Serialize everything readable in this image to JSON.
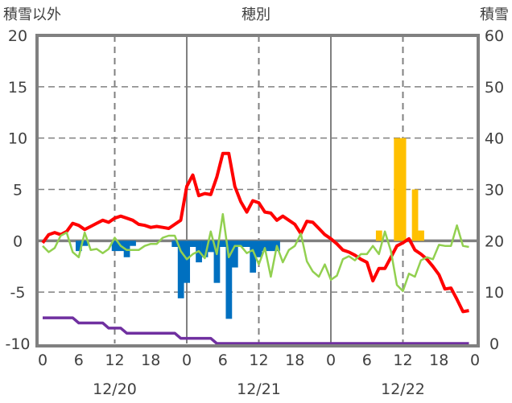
{
  "chart_data": {
    "type": "bar+line",
    "title": "穂別",
    "left_axis_label": "積雪以外",
    "right_axis_label": "積雪",
    "ylim_left": [
      -10,
      20
    ],
    "ylim_right": [
      0,
      60
    ],
    "left_ticks": [
      "20",
      "15",
      "10",
      "5",
      "0",
      "-5",
      "-10"
    ],
    "right_ticks": [
      "60",
      "50",
      "40",
      "30",
      "20",
      "10",
      "0"
    ],
    "x_hours_range": [
      0,
      72
    ],
    "x_tick_labels": [
      "0",
      "6",
      "12",
      "18",
      "0",
      "6",
      "12",
      "18",
      "0",
      "6",
      "12",
      "18",
      "0"
    ],
    "date_labels": [
      "12/20",
      "12/21",
      "12/22"
    ],
    "grid": true,
    "series": [
      {
        "name": "temperature",
        "type": "line",
        "axis": "left",
        "color": "#FF0000",
        "values": [
          -0.2,
          0.6,
          0.8,
          0.6,
          0.9,
          1.7,
          1.5,
          1.1,
          1.4,
          1.7,
          2.0,
          1.8,
          2.2,
          2.4,
          2.2,
          2.0,
          1.6,
          1.5,
          1.3,
          1.4,
          1.3,
          1.2,
          1.6,
          2.0,
          5.3,
          6.4,
          4.4,
          4.6,
          4.5,
          6.2,
          8.5,
          8.5,
          5.3,
          3.8,
          2.8,
          3.9,
          3.7,
          2.8,
          2.7,
          2.0,
          2.4,
          2.0,
          1.6,
          0.7,
          1.9,
          1.8,
          1.2,
          0.6,
          0.2,
          -0.3,
          -0.9,
          -1.1,
          -1.4,
          -1.8,
          -2.1,
          -3.9,
          -2.7,
          -2.7,
          -1.6,
          -0.5,
          -0.2,
          0.2,
          -0.9,
          -1.3,
          -1.8,
          -2.5,
          -3.3,
          -4.7,
          -4.6,
          -5.7,
          -6.9,
          -6.8
        ]
      },
      {
        "name": "green-series",
        "type": "line",
        "axis": "left",
        "color": "#92D050",
        "values": [
          -0.5,
          -1.1,
          -0.7,
          0.5,
          0.8,
          -1.1,
          -1.6,
          0.8,
          -0.9,
          -0.8,
          -1.2,
          -0.8,
          0.3,
          -0.5,
          -0.9,
          -0.9,
          -0.9,
          -0.5,
          -0.3,
          -0.3,
          0.3,
          0.5,
          0.5,
          -1.0,
          -1.8,
          -1.3,
          -1.0,
          -1.7,
          0.9,
          -1.3,
          2.6,
          -1.6,
          -0.5,
          -0.5,
          -1.2,
          -0.9,
          -2.3,
          -0.7,
          -3.5,
          -0.5,
          -2.1,
          -0.9,
          -0.5,
          0.7,
          -2.0,
          -3.0,
          -3.5,
          -2.3,
          -3.8,
          -3.4,
          -1.8,
          -1.5,
          -1.9,
          -1.3,
          -1.3,
          -0.5,
          -1.3,
          0.9,
          -1.0,
          -4.3,
          -4.9,
          -3.2,
          -3.5,
          -1.9,
          -1.6,
          -1.8,
          -0.4,
          -0.5,
          -0.5,
          1.5,
          -0.5,
          -0.6
        ]
      },
      {
        "name": "blue-bars",
        "type": "bar",
        "axis": "left",
        "color": "#0070C0",
        "points": [
          [
            6,
            -1.0
          ],
          [
            7,
            -0.5
          ],
          [
            12,
            -1.0
          ],
          [
            13,
            -1.0
          ],
          [
            14,
            -1.6
          ],
          [
            15,
            -0.5
          ],
          [
            22,
            -0.6
          ],
          [
            23,
            -5.6
          ],
          [
            24,
            -4.1
          ],
          [
            25,
            -0.6
          ],
          [
            26,
            -2.1
          ],
          [
            27,
            -1.6
          ],
          [
            28,
            -1.1
          ],
          [
            29,
            -4.1
          ],
          [
            30,
            -0.6
          ],
          [
            31,
            -7.6
          ],
          [
            32,
            -2.6
          ],
          [
            33,
            -0.6
          ],
          [
            34,
            -0.6
          ],
          [
            35,
            -3.1
          ],
          [
            36,
            -1.6
          ],
          [
            37,
            -1.0
          ],
          [
            38,
            -1.0
          ],
          [
            39,
            -1.0
          ]
        ]
      },
      {
        "name": "orange-bars",
        "type": "bar",
        "axis": "left",
        "color": "#FFC000",
        "points": [
          [
            56,
            1
          ],
          [
            59,
            10
          ],
          [
            60,
            10
          ],
          [
            62,
            5
          ],
          [
            63,
            1
          ]
        ]
      },
      {
        "name": "snow-depth",
        "type": "line",
        "axis": "right",
        "color": "#7030A0",
        "values": [
          5,
          5,
          5,
          5,
          5,
          5,
          4,
          4,
          4,
          4,
          4,
          3,
          3,
          3,
          2,
          2,
          2,
          2,
          2,
          2,
          2,
          2,
          2,
          1,
          1,
          1,
          1,
          1,
          1,
          0,
          0,
          0,
          0,
          0,
          0,
          0,
          0,
          0,
          0,
          0,
          0,
          0,
          0,
          0,
          0,
          0,
          0,
          0,
          0,
          0,
          0,
          0,
          0,
          0,
          0,
          0,
          0,
          0,
          0,
          0,
          0,
          0,
          0,
          0,
          0,
          0,
          0,
          0,
          0,
          0,
          0,
          0
        ]
      }
    ]
  }
}
